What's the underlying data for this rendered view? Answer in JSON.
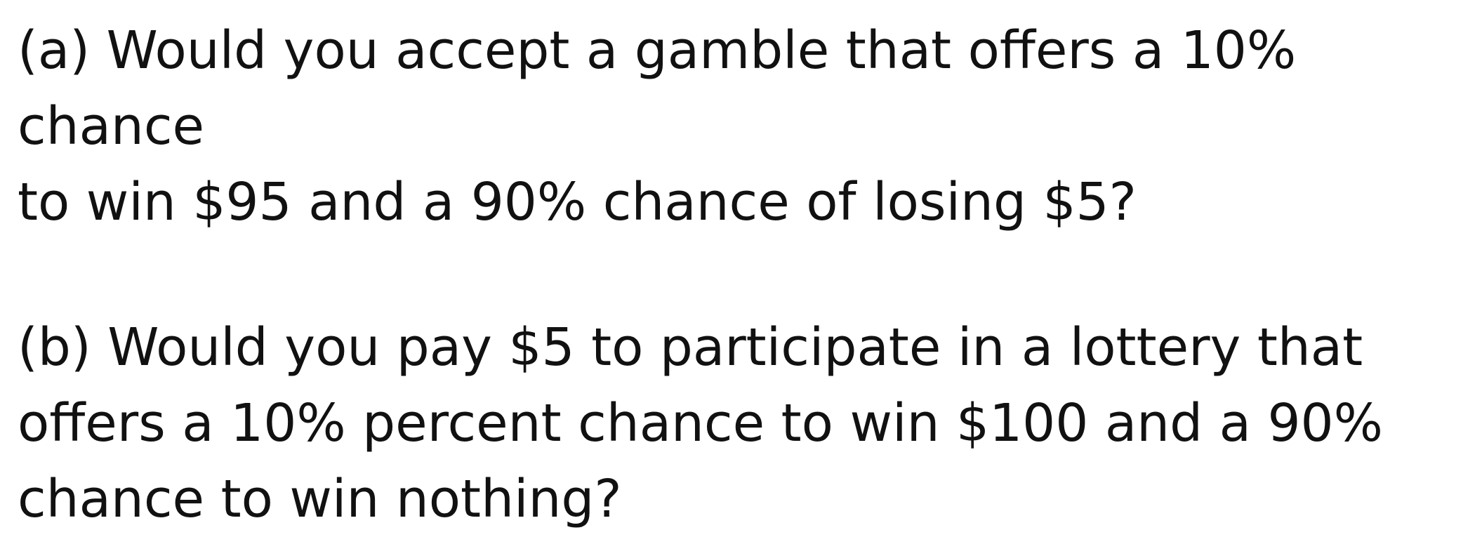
{
  "questions": [
    {
      "id": "a",
      "text": "(a) Would you accept a gamble that offers a 10% chance\nto win $95 and a 90% chance of losing $5?"
    },
    {
      "id": "b",
      "text": "(b) Would you pay $5 to participate in a lottery that\noffers a 10% percent chance to win $100 and a 90%\nchance to win nothing?"
    }
  ]
}
